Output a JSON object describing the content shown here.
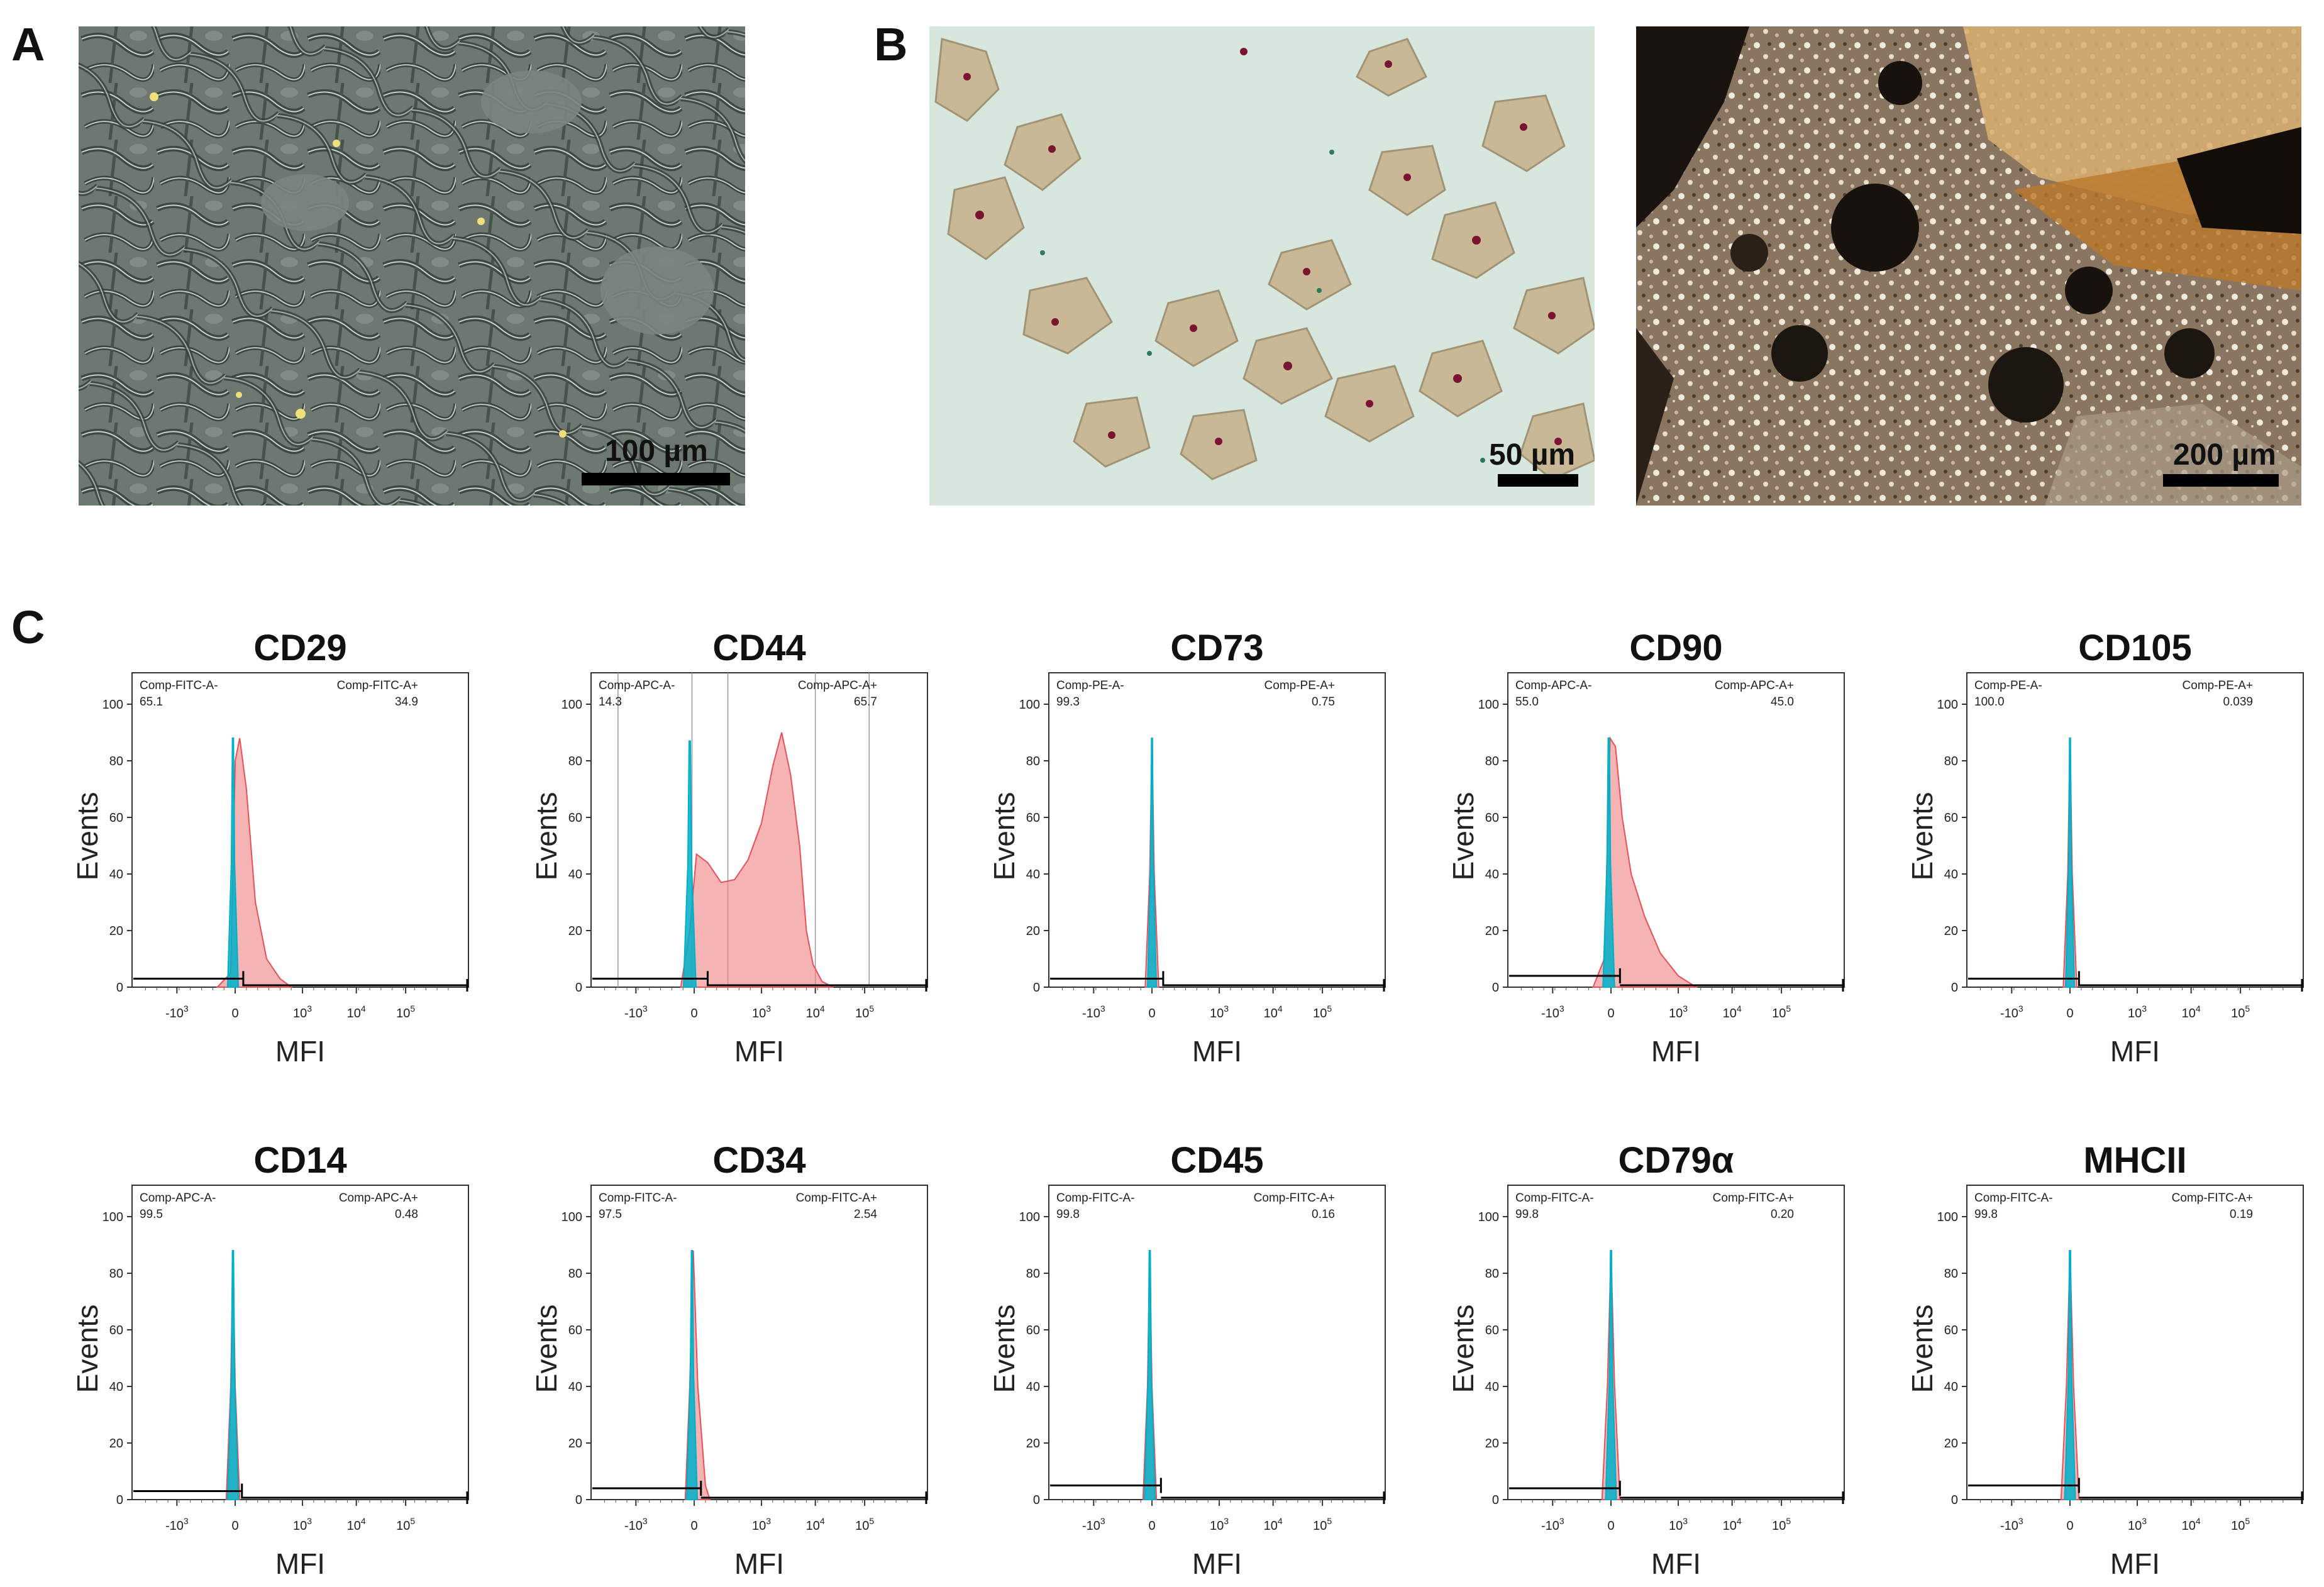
{
  "panels": {
    "a": {
      "letter": "A",
      "scale_label": "100 µm",
      "description_icon": "phase-contrast-micrograph"
    },
    "b": {
      "letter": "B",
      "left_scale_label": "50 µm",
      "right_scale_label": "200 µm"
    },
    "c": {
      "letter": "C"
    }
  },
  "colors": {
    "isotype": "#00b0c8",
    "sample": "#f08080",
    "sample_edge": "#e8505a",
    "gate": "#000000"
  },
  "chart_data": [
    {
      "type": "area",
      "title": "CD29",
      "xlabel": "MFI",
      "ylabel": "Events",
      "yticks": [
        "0",
        "20",
        "40",
        "60",
        "80",
        "100"
      ],
      "xticks": [
        "-10^3",
        "0",
        "10^3",
        "10^4",
        "10^5"
      ],
      "gate_neg_label": "Comp-FITC-A-",
      "gate_neg_value": "65.1",
      "gate_pos_label": "Comp-FITC-A+",
      "gate_pos_value": "34.9",
      "isotype": {
        "center": -0.05,
        "height": 88,
        "width": 0.12
      },
      "sample": [
        [
          -0.4,
          0
        ],
        [
          -0.1,
          5
        ],
        [
          0.0,
          80
        ],
        [
          0.1,
          88
        ],
        [
          0.25,
          70
        ],
        [
          0.45,
          30
        ],
        [
          0.7,
          10
        ],
        [
          1.0,
          3
        ],
        [
          1.25,
          0
        ]
      ],
      "gate_y": 3,
      "gate_split": 0.18,
      "vlines": []
    },
    {
      "type": "area",
      "title": "CD44",
      "xlabel": "MFI",
      "ylabel": "Events",
      "yticks": [
        "0",
        "20",
        "40",
        "60",
        "80",
        "100"
      ],
      "xticks": [
        "-10^3",
        "0",
        "10^3",
        "10^4",
        "10^5"
      ],
      "gate_neg_label": "Comp-APC-A-",
      "gate_neg_value": "14.3",
      "gate_pos_label": "Comp-APC-A+",
      "gate_pos_value": "65.7",
      "isotype": {
        "center": -0.1,
        "height": 87,
        "width": 0.14
      },
      "sample": [
        [
          -0.3,
          0
        ],
        [
          -0.1,
          20
        ],
        [
          0.05,
          47
        ],
        [
          0.3,
          44
        ],
        [
          0.6,
          37
        ],
        [
          0.9,
          38
        ],
        [
          1.2,
          45
        ],
        [
          1.5,
          58
        ],
        [
          1.75,
          78
        ],
        [
          1.95,
          90
        ],
        [
          2.15,
          75
        ],
        [
          2.35,
          50
        ],
        [
          2.5,
          20
        ],
        [
          2.65,
          8
        ],
        [
          2.85,
          2
        ],
        [
          3.1,
          0
        ]
      ],
      "gate_y": 3,
      "gate_split": 0.3,
      "vlines": [
        -1.7,
        -0.05,
        0.75,
        2.7,
        3.9
      ]
    },
    {
      "type": "area",
      "title": "CD73",
      "xlabel": "MFI",
      "ylabel": "Events",
      "yticks": [
        "0",
        "20",
        "40",
        "60",
        "80",
        "100"
      ],
      "xticks": [
        "-10^3",
        "0",
        "10^3",
        "10^4",
        "10^5"
      ],
      "gate_neg_label": "Comp-PE-A-",
      "gate_neg_value": "99.3",
      "gate_pos_label": "Comp-PE-A+",
      "gate_pos_value": "0.75",
      "isotype": {
        "center": 0.0,
        "height": 88,
        "width": 0.1
      },
      "sample": [
        [
          -0.15,
          0
        ],
        [
          -0.05,
          40
        ],
        [
          0.0,
          88
        ],
        [
          0.05,
          40
        ],
        [
          0.15,
          0
        ]
      ],
      "gate_y": 3,
      "gate_split": 0.25,
      "vlines": []
    },
    {
      "type": "area",
      "title": "CD90",
      "xlabel": "MFI",
      "ylabel": "Events",
      "yticks": [
        "0",
        "20",
        "40",
        "60",
        "80",
        "100"
      ],
      "xticks": [
        "-10^3",
        "0",
        "10^3",
        "10^4",
        "10^5"
      ],
      "gate_neg_label": "Comp-APC-A-",
      "gate_neg_value": "55.0",
      "gate_pos_label": "Comp-APC-A+",
      "gate_pos_value": "45.0",
      "isotype": {
        "center": -0.05,
        "height": 88,
        "width": 0.13
      },
      "sample": [
        [
          -0.4,
          0
        ],
        [
          -0.15,
          10
        ],
        [
          -0.02,
          88
        ],
        [
          0.1,
          85
        ],
        [
          0.25,
          60
        ],
        [
          0.45,
          40
        ],
        [
          0.75,
          25
        ],
        [
          1.1,
          12
        ],
        [
          1.5,
          4
        ],
        [
          1.9,
          0
        ]
      ],
      "gate_y": 4,
      "gate_split": 0.2,
      "vlines": []
    },
    {
      "type": "area",
      "title": "CD105",
      "xlabel": "MFI",
      "ylabel": "Events",
      "yticks": [
        "0",
        "20",
        "40",
        "60",
        "80",
        "100"
      ],
      "xticks": [
        "-10^3",
        "0",
        "10^3",
        "10^4",
        "10^5"
      ],
      "gate_neg_label": "Comp-PE-A-",
      "gate_neg_value": "100.0",
      "gate_pos_label": "Comp-PE-A+",
      "gate_pos_value": "0.039",
      "isotype": {
        "center": 0.0,
        "height": 88,
        "width": 0.1
      },
      "sample": [
        [
          -0.15,
          0
        ],
        [
          -0.05,
          40
        ],
        [
          0.0,
          88
        ],
        [
          0.05,
          40
        ],
        [
          0.15,
          0
        ]
      ],
      "gate_y": 3,
      "gate_split": 0.2,
      "vlines": []
    },
    {
      "type": "area",
      "title": "CD14",
      "xlabel": "MFI",
      "ylabel": "Events",
      "yticks": [
        "0",
        "20",
        "40",
        "60",
        "80",
        "100"
      ],
      "xticks": [
        "-10^3",
        "0",
        "10^3",
        "10^4",
        "10^5"
      ],
      "gate_neg_label": "Comp-APC-A-",
      "gate_neg_value": "99.5",
      "gate_pos_label": "Comp-APC-A+",
      "gate_pos_value": "0.48",
      "isotype": {
        "center": -0.05,
        "height": 88,
        "width": 0.12
      },
      "sample": [
        [
          -0.2,
          0
        ],
        [
          -0.1,
          40
        ],
        [
          -0.05,
          88
        ],
        [
          0.0,
          40
        ],
        [
          0.1,
          0
        ]
      ],
      "gate_y": 3,
      "gate_split": 0.15,
      "vlines": []
    },
    {
      "type": "area",
      "title": "CD34",
      "xlabel": "MFI",
      "ylabel": "Events",
      "yticks": [
        "0",
        "20",
        "40",
        "60",
        "80",
        "100"
      ],
      "xticks": [
        "-10^3",
        "0",
        "10^3",
        "10^4",
        "10^5"
      ],
      "gate_neg_label": "Comp-FITC-A-",
      "gate_neg_value": "97.5",
      "gate_pos_label": "Comp-FITC-A+",
      "gate_pos_value": "2.54",
      "isotype": {
        "center": -0.05,
        "height": 88,
        "width": 0.12
      },
      "sample": [
        [
          -0.2,
          0
        ],
        [
          -0.1,
          40
        ],
        [
          -0.02,
          88
        ],
        [
          0.08,
          40
        ],
        [
          0.25,
          5
        ],
        [
          0.35,
          0
        ]
      ],
      "gate_y": 4,
      "gate_split": 0.15,
      "vlines": []
    },
    {
      "type": "area",
      "title": "CD45",
      "xlabel": "MFI",
      "ylabel": "Events",
      "yticks": [
        "0",
        "20",
        "40",
        "60",
        "80",
        "100"
      ],
      "xticks": [
        "-10^3",
        "0",
        "10^3",
        "10^4",
        "10^5"
      ],
      "gate_neg_label": "Comp-FITC-A-",
      "gate_neg_value": "99.8",
      "gate_pos_label": "Comp-FITC-A+",
      "gate_pos_value": "0.16",
      "isotype": {
        "center": -0.05,
        "height": 88,
        "width": 0.12
      },
      "sample": [
        [
          -0.2,
          0
        ],
        [
          -0.1,
          40
        ],
        [
          -0.05,
          88
        ],
        [
          0.0,
          40
        ],
        [
          0.1,
          0
        ]
      ],
      "gate_y": 5,
      "gate_split": 0.2,
      "vlines": []
    },
    {
      "type": "area",
      "title": "CD79α",
      "xlabel": "MFI",
      "ylabel": "Events",
      "yticks": [
        "0",
        "20",
        "40",
        "60",
        "80",
        "100"
      ],
      "xticks": [
        "-10^3",
        "0",
        "10^3",
        "10^4",
        "10^5"
      ],
      "gate_neg_label": "Comp-FITC-A-",
      "gate_neg_value": "99.8",
      "gate_pos_label": "Comp-FITC-A+",
      "gate_pos_value": "0.20",
      "isotype": {
        "center": 0.0,
        "height": 88,
        "width": 0.12
      },
      "sample": [
        [
          -0.2,
          0
        ],
        [
          -0.08,
          40
        ],
        [
          0.0,
          88
        ],
        [
          0.08,
          40
        ],
        [
          0.2,
          0
        ]
      ],
      "gate_y": 4,
      "gate_split": 0.2,
      "vlines": []
    },
    {
      "type": "area",
      "title": "MHCII",
      "xlabel": "MFI",
      "ylabel": "Events",
      "yticks": [
        "0",
        "20",
        "40",
        "60",
        "80",
        "100"
      ],
      "xticks": [
        "-10^3",
        "0",
        "10^3",
        "10^4",
        "10^5"
      ],
      "gate_neg_label": "Comp-FITC-A-",
      "gate_neg_value": "99.8",
      "gate_pos_label": "Comp-FITC-A+",
      "gate_pos_value": "0.19",
      "isotype": {
        "center": 0.0,
        "height": 88,
        "width": 0.12
      },
      "sample": [
        [
          -0.2,
          0
        ],
        [
          -0.08,
          40
        ],
        [
          0.0,
          88
        ],
        [
          0.08,
          40
        ],
        [
          0.2,
          0
        ]
      ],
      "gate_y": 5,
      "gate_split": 0.2,
      "vlines": []
    }
  ]
}
